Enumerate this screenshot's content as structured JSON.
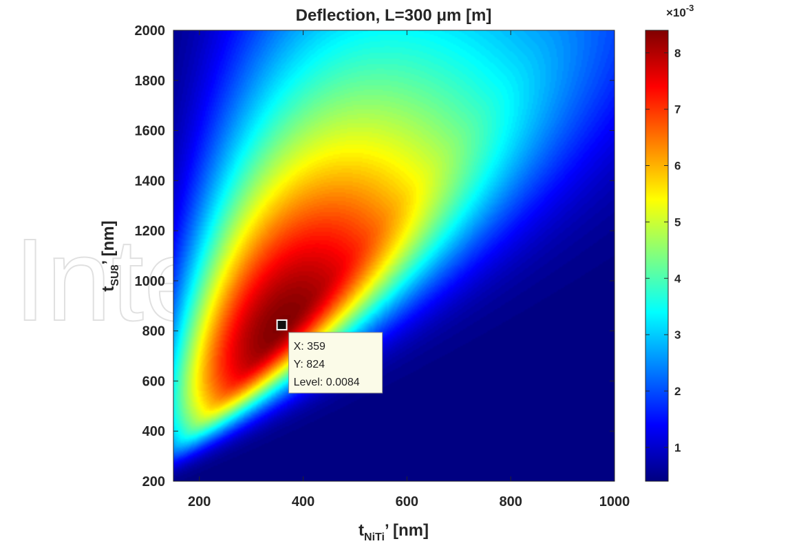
{
  "watermark": "IntechOpen",
  "chart_data": {
    "type": "heatmap",
    "title": "Deflection, L=300 μm [m]",
    "xlabel": {
      "main": "t",
      "sub": "NiTi",
      "suffix": "’ [nm]"
    },
    "ylabel": {
      "main": "t",
      "sub": "SU8",
      "suffix": "’ [nm]"
    },
    "xlim": [
      150,
      1000
    ],
    "ylim": [
      200,
      2000
    ],
    "xticks": [
      200,
      400,
      600,
      800,
      1000
    ],
    "yticks": [
      200,
      400,
      600,
      800,
      1000,
      1200,
      1400,
      1600,
      1800,
      2000
    ],
    "grid": false,
    "colormap": "jet",
    "colorbar": {
      "clim": [
        0.4,
        8.4
      ],
      "ticks": [
        1,
        2,
        3,
        4,
        5,
        6,
        7,
        8
      ],
      "exponent_label": "×10",
      "exponent": "-3"
    },
    "peak": {
      "x": 359,
      "y": 824,
      "value": 0.0084
    },
    "datatip": {
      "x": 359,
      "y": 824,
      "lines": [
        "X: 359",
        "Y: 824",
        "Level: 0.0084"
      ]
    }
  }
}
